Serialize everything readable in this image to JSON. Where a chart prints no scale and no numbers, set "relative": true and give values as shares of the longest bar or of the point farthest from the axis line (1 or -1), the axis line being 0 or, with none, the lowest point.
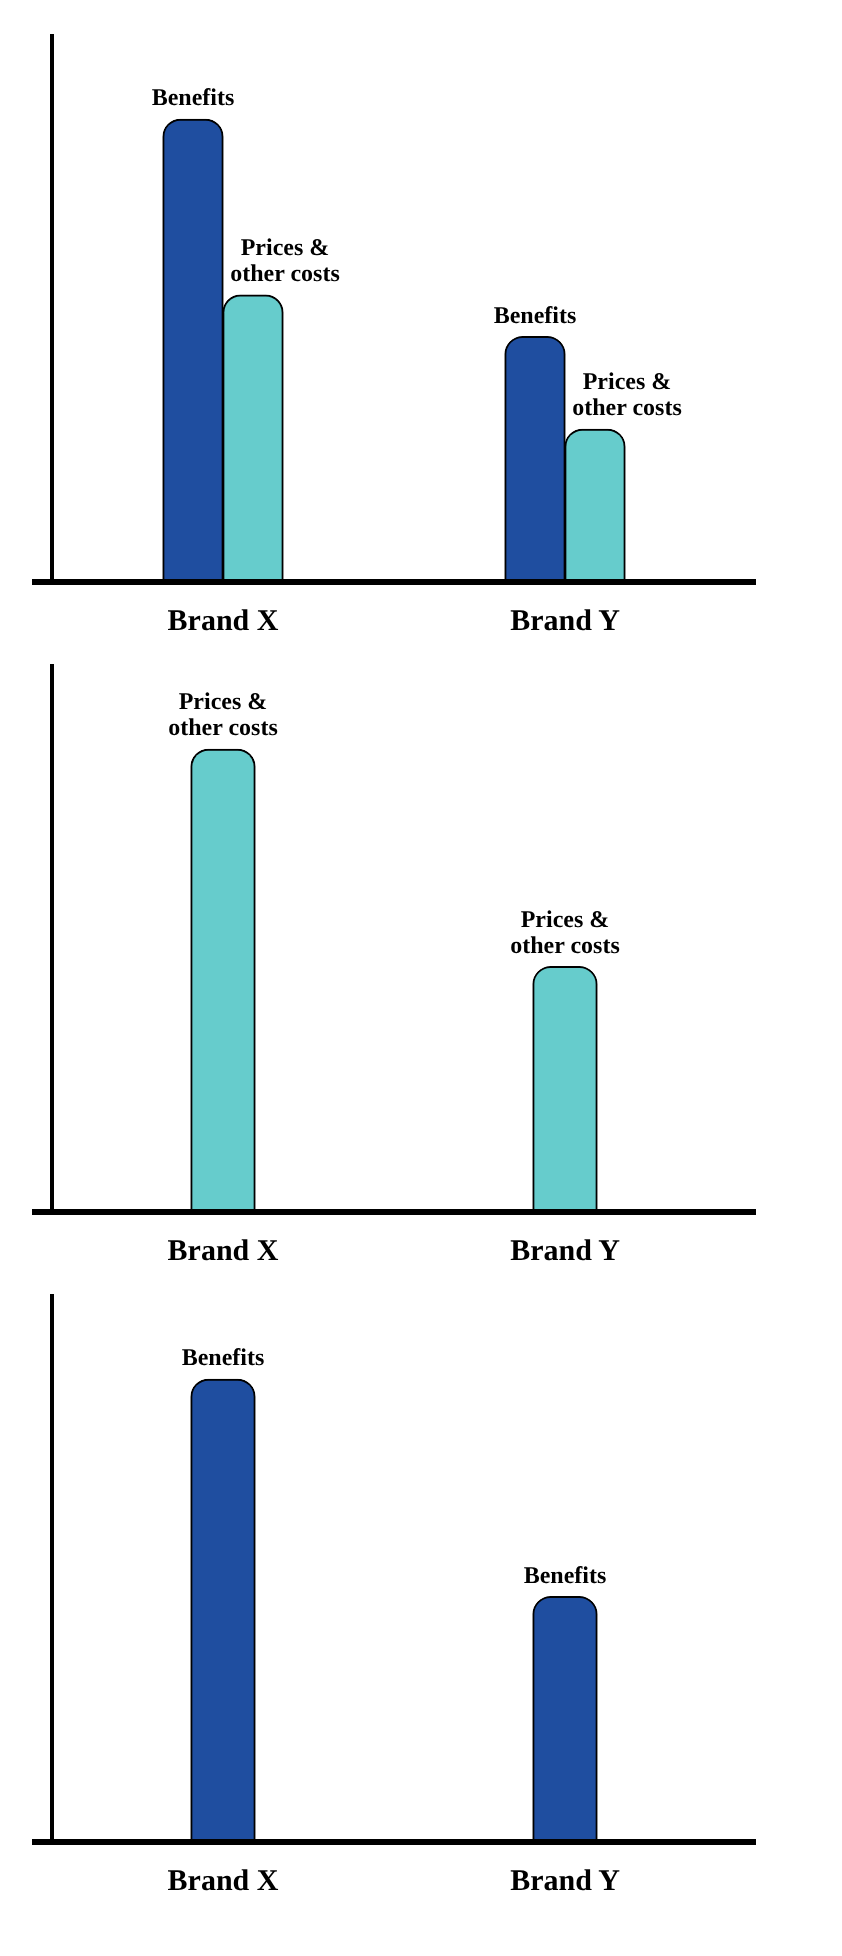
{
  "chart_data": [
    {
      "type": "bar",
      "relative": true,
      "categories": [
        "Brand X",
        "Brand Y"
      ],
      "series": [
        {
          "name": "Benefits",
          "color": "#1f4ea0",
          "values": [
            1,
            0.53
          ]
        },
        {
          "name": "Prices & other costs",
          "color": "#66cccc",
          "values": [
            0.62,
            0.33
          ]
        }
      ]
    },
    {
      "type": "bar",
      "relative": true,
      "categories": [
        "Brand X",
        "Brand Y"
      ],
      "series": [
        {
          "name": "Prices & other costs",
          "color": "#66cccc",
          "values": [
            1,
            0.53
          ]
        }
      ]
    },
    {
      "type": "bar",
      "relative": true,
      "categories": [
        "Brand X",
        "Brand Y"
      ],
      "series": [
        {
          "name": "Benefits",
          "color": "#1f4ea0",
          "values": [
            1,
            0.53
          ]
        }
      ]
    }
  ]
}
